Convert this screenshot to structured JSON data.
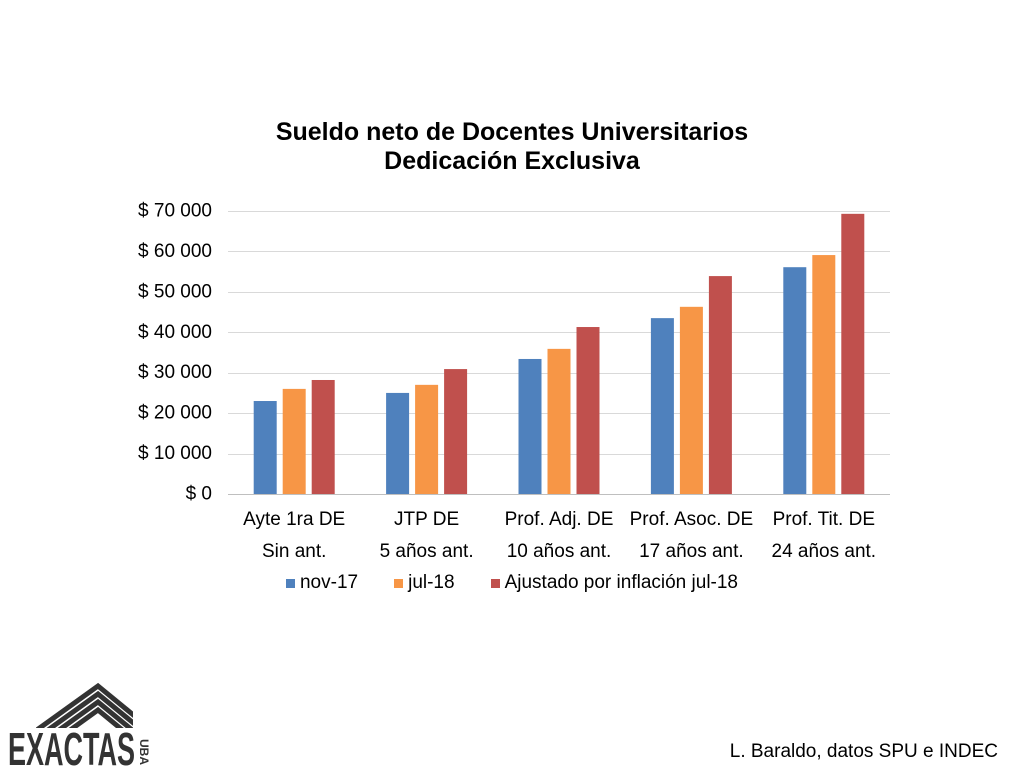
{
  "slide": {
    "credit": "L. Baraldo, datos SPU e INDEC"
  },
  "logo": {
    "wordmark": "EXACTAS",
    "sub_wordmark": "UBA",
    "icon": "exactas-roof-icon",
    "color": "#333333"
  },
  "chart_data": {
    "type": "bar",
    "title": "Sueldo neto de Docentes Universitarios",
    "subtitle": "Dedicación Exclusiva",
    "categories": [
      "Ayte 1ra DE",
      "JTP DE",
      "Prof. Adj. DE",
      "Prof. Asoc. DE",
      "Prof. Tit. DE"
    ],
    "category_sublabels": [
      "Sin ant.",
      "5 años ant.",
      "10 años ant.",
      "17 años ant.",
      "24 años ant."
    ],
    "series": [
      {
        "name": "nov-17",
        "color": "#4F81BD",
        "values": [
          23000,
          25000,
          33400,
          43500,
          56100
        ]
      },
      {
        "name": "jul-18",
        "color": "#F79646",
        "values": [
          26000,
          27000,
          35900,
          46300,
          59100
        ]
      },
      {
        "name": "Ajustado por inflación jul-18",
        "color": "#C0504D",
        "values": [
          28200,
          30900,
          41300,
          53900,
          69300
        ]
      }
    ],
    "ylim": [
      0,
      70000
    ],
    "yticks": [
      0,
      10000,
      20000,
      30000,
      40000,
      50000,
      60000,
      70000
    ],
    "ytick_labels": [
      "$ 0",
      "$ 10 000",
      "$ 20 000",
      "$ 30 000",
      "$ 40 000",
      "$ 50 000",
      "$ 60 000",
      "$ 70 000"
    ],
    "grid": true,
    "legend_position": "bottom"
  }
}
